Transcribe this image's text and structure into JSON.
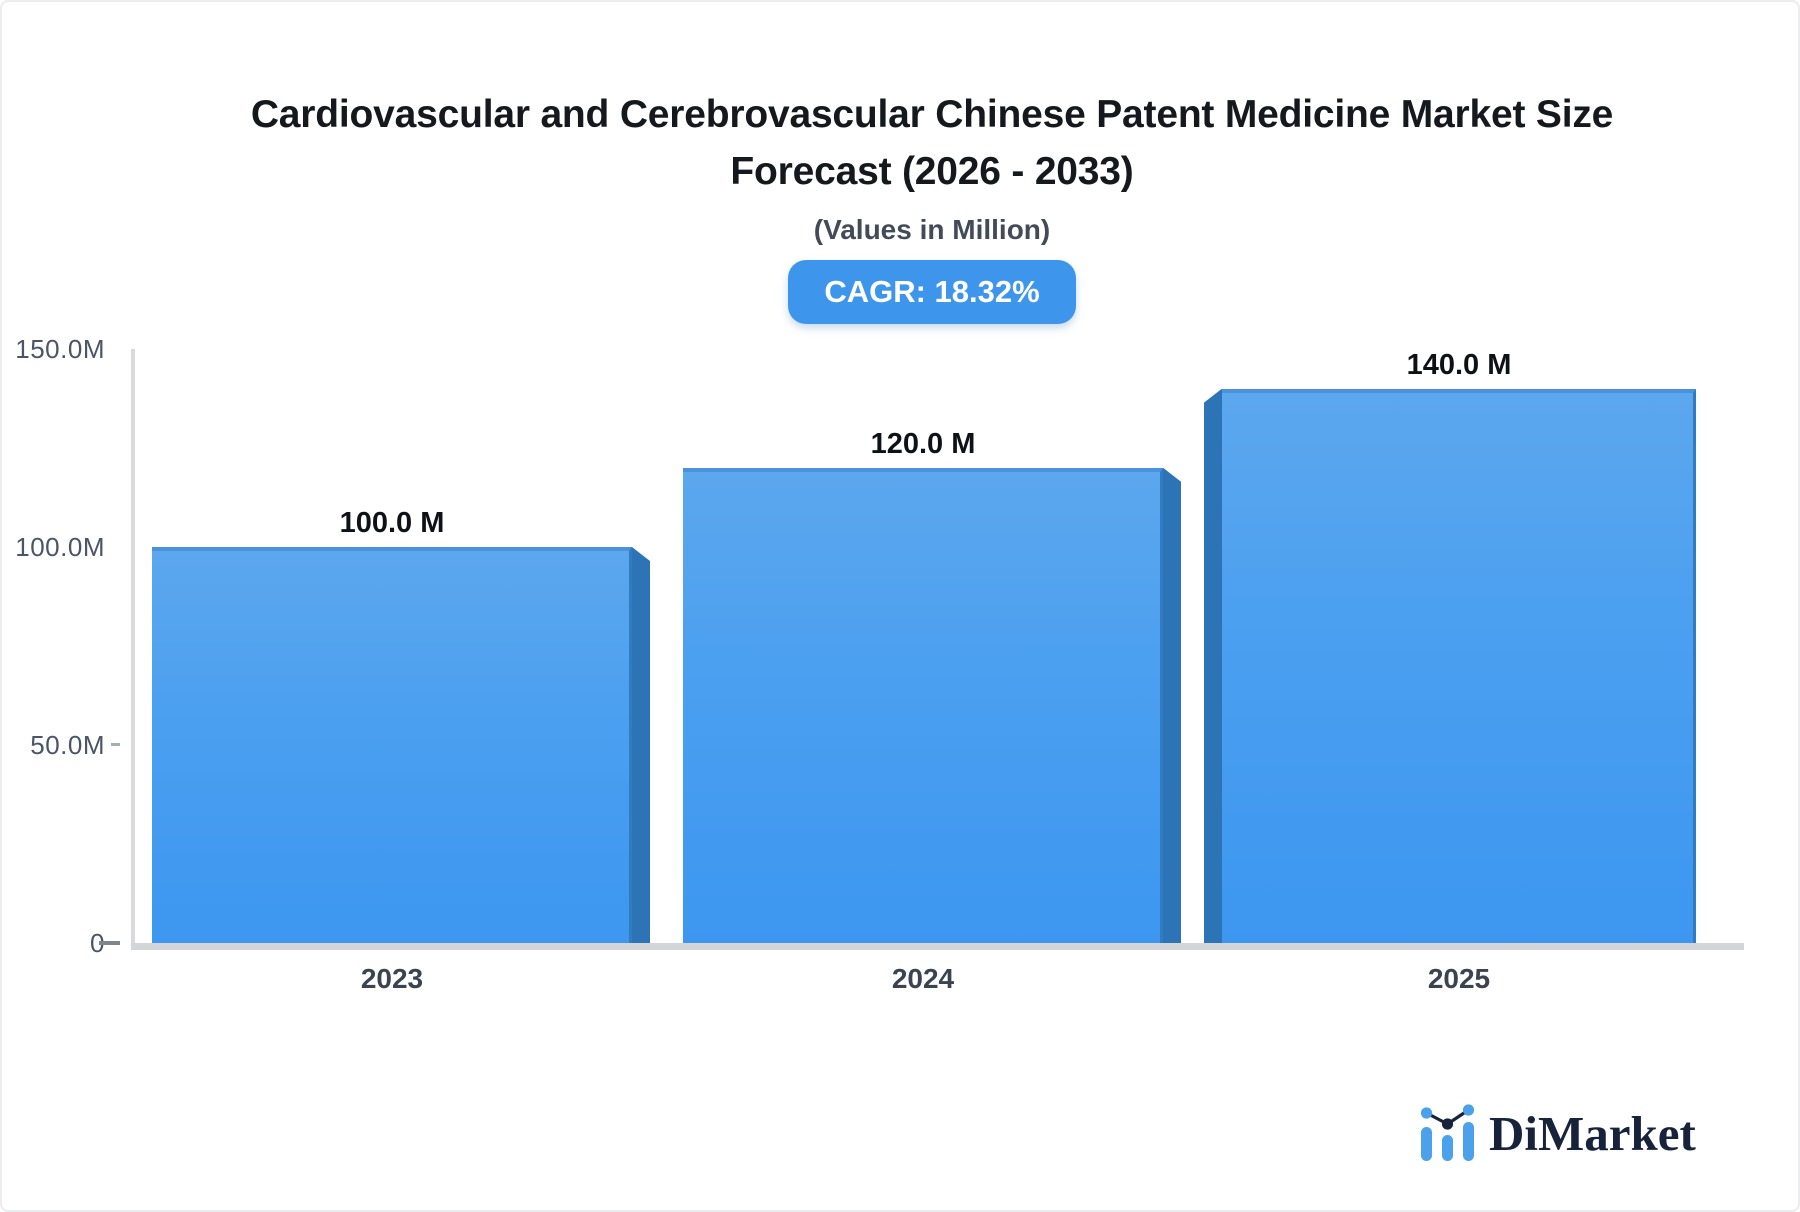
{
  "header": {
    "title_line1": "Cardiovascular and Cerebrovascular Chinese Patent Medicine Market Size",
    "title_line2": "Forecast (2026 - 2033)",
    "subtitle": "(Values in Million)",
    "cagr_badge": "CAGR: 18.32%"
  },
  "chart_data": {
    "type": "bar",
    "title": "Cardiovascular and Cerebrovascular Chinese Patent Medicine Market Size Forecast (2026 - 2033)",
    "subtitle": "(Values in Million)",
    "annotation": "CAGR: 18.32%",
    "categories": [
      "2023",
      "2024",
      "2025"
    ],
    "values_in_millions": [
      100.0,
      120.0,
      140.0
    ],
    "value_labels": [
      "100.0 M",
      "120.0 M",
      "140.0 M"
    ],
    "y_ticks": [
      {
        "label": "150.0M",
        "value_in_millions": 150
      },
      {
        "label": "100.0M",
        "value_in_millions": 100
      },
      {
        "label": "50.0M",
        "value_in_millions": 50
      },
      {
        "label": "0",
        "value_in_millions": 0
      }
    ],
    "ylim_in_millions": [
      0,
      150
    ],
    "xlabel": "",
    "ylabel": "",
    "grid": false,
    "legend": false,
    "bar_color_top": "#5CA7EE",
    "bar_color_bottom": "#3D97F0",
    "bar_side_color": "#2C74B6"
  },
  "branding": {
    "logo_text": "DiMarket"
  },
  "colors": {
    "accent_blue": "#3E96EC",
    "axis_gray": "#D7D8DC",
    "text_dark": "#15181D",
    "text_gray": "#4A5568",
    "logo_navy": "#17223B",
    "logo_blue": "#4BA1EB"
  }
}
